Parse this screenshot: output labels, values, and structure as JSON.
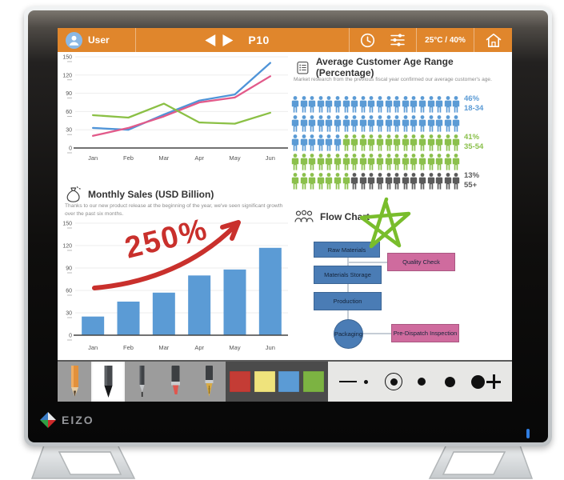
{
  "device": {
    "brand": "EIZO",
    "led_color": "#2f7de1"
  },
  "toolbar": {
    "bg_color": "#e0862c",
    "user_label": "User",
    "page_label": "P10",
    "climate_label": "25°C / 40%",
    "icons": [
      "user-avatar-icon",
      "prev-arrow-icon",
      "next-arrow-icon",
      "clock-icon",
      "sliders-icon",
      "home-icon"
    ]
  },
  "age_section": {
    "icon": "clipboard-icon",
    "title": "Average Customer Age Range (Percentage)",
    "subtitle": "Market research from the previous fiscal year confirmed our average customer's age."
  },
  "sales_section": {
    "icon": "money-bag-icon",
    "title": "Monthly Sales (USD Billion)",
    "subtitle": "Thanks to our new product release at the beginning of the year, we've seen significant growth over the past six months.",
    "annotation": "250%",
    "annotation_color": "#c9302c"
  },
  "flow": {
    "icon": "people-group-icon",
    "title": "Flow Chart",
    "star_color": "#79bd2c",
    "nodes": [
      "Raw Materials",
      "Materials Storage",
      "Production",
      "Packaging",
      "Quality Check",
      "Pre-Dispatch Inspection"
    ]
  },
  "chart_data": [
    {
      "type": "line",
      "categories": [
        "Jan",
        "Feb",
        "Mar",
        "Apr",
        "May",
        "Jun"
      ],
      "ylim": [
        0,
        150
      ],
      "yticks": [
        0,
        30,
        60,
        90,
        120,
        150
      ],
      "grid": true,
      "legend": "none",
      "series": [
        {
          "name": "blue-line",
          "color": "#4f94d8",
          "values": [
            33,
            30,
            55,
            78,
            88,
            140
          ]
        },
        {
          "name": "pink-line",
          "color": "#e25a8a",
          "values": [
            20,
            33,
            52,
            75,
            83,
            118
          ]
        },
        {
          "name": "green-line",
          "color": "#8bc045",
          "values": [
            54,
            50,
            73,
            42,
            40,
            58
          ]
        }
      ]
    },
    {
      "type": "pictograph",
      "title": "Average Customer Age Range (Percentage)",
      "icons_per_row": 20,
      "palette": {
        "blue": "#5b9bd5",
        "green": "#8bc04c",
        "gray": "#5a5a5a"
      },
      "rows": [
        [
          {
            "color": "blue",
            "count": 20
          }
        ],
        [
          {
            "color": "blue",
            "count": 20
          }
        ],
        [
          {
            "color": "blue",
            "count": 6
          },
          {
            "color": "green",
            "count": 14
          }
        ],
        [
          {
            "color": "green",
            "count": 20
          }
        ],
        [
          {
            "color": "green",
            "count": 7
          },
          {
            "color": "gray",
            "count": 13
          }
        ]
      ],
      "groups": [
        {
          "percent": "46%",
          "range": "18-34",
          "color": "blue",
          "row": 0
        },
        {
          "percent": "41%",
          "range": "35-54",
          "color": "green",
          "row": 2
        },
        {
          "percent": "13%",
          "range": "55+",
          "color": "gray",
          "row": 4
        }
      ]
    },
    {
      "type": "bar",
      "title": "Monthly Sales (USD Billion)",
      "categories": [
        "Jan",
        "Feb",
        "Mar",
        "Apr",
        "May",
        "Jun"
      ],
      "values": [
        25,
        45,
        57,
        80,
        88,
        117
      ],
      "ylim": [
        0,
        150
      ],
      "yticks": [
        0,
        30,
        60,
        90,
        120,
        150
      ],
      "color": "#5b9bd5",
      "grid": true
    }
  ],
  "tools": {
    "pens": [
      {
        "name": "orange-pencil",
        "selected": false
      },
      {
        "name": "black-pencil",
        "selected": true
      },
      {
        "name": "mechanical-pencil",
        "selected": false
      },
      {
        "name": "red-marker",
        "selected": false
      },
      {
        "name": "fountain-pen",
        "selected": false
      }
    ],
    "colors": [
      "#c43c35",
      "#efe37c",
      "#5b9bd5",
      "#7cb342"
    ],
    "sizes": {
      "dots": [
        5,
        9,
        10,
        13,
        17
      ],
      "selected_index": 1
    }
  }
}
